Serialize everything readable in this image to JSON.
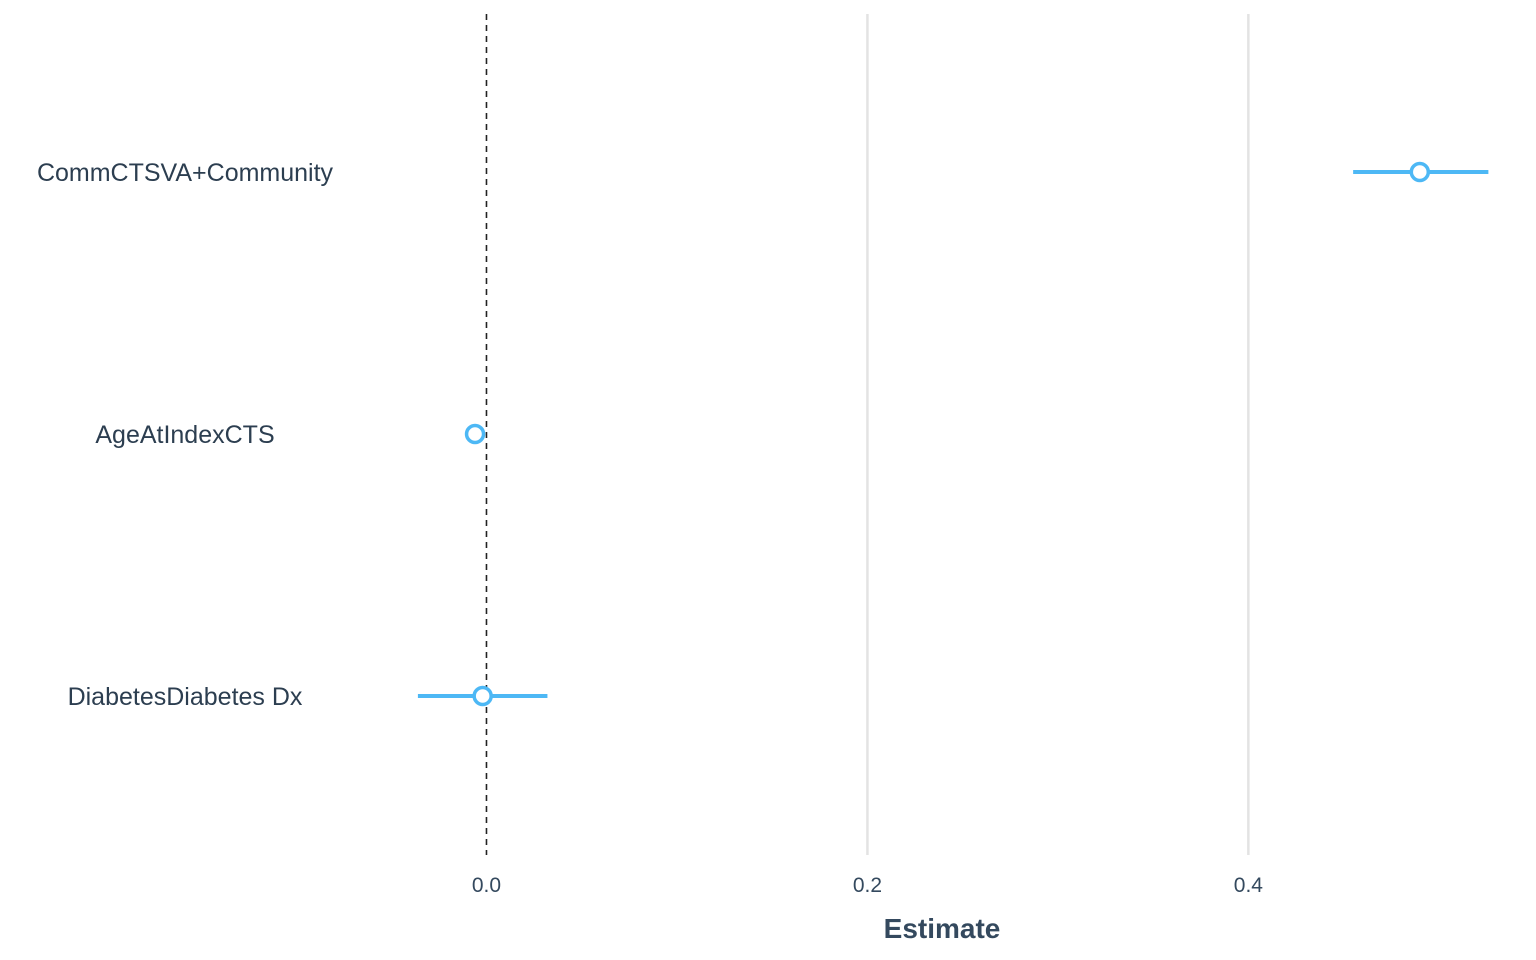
{
  "chart_data": {
    "type": "scatter",
    "subtype": "coefficient-plot",
    "title": "",
    "xlabel": "Estimate",
    "ylabel": "",
    "xlim": [
      -0.1,
      0.53
    ],
    "x_ticks": [
      0.0,
      0.2,
      0.4
    ],
    "x_tick_labels": [
      "0.0",
      "0.2",
      "0.4"
    ],
    "reference_line": 0.0,
    "grid": "vertical",
    "categories": [
      "CommCTSVA+Community",
      "AgeAtIndexCTS",
      "DiabetesDiabetes Dx"
    ],
    "series": [
      {
        "estimates": [
          0.49,
          -0.006,
          -0.002
        ],
        "ci_low": [
          0.455,
          -0.006,
          -0.036
        ],
        "ci_high": [
          0.526,
          -0.006,
          0.032
        ]
      }
    ],
    "colors": {
      "point": "#4db8f5",
      "grid": "#e3e3e3",
      "reference": "#222222",
      "label": "#2c3e50"
    }
  }
}
